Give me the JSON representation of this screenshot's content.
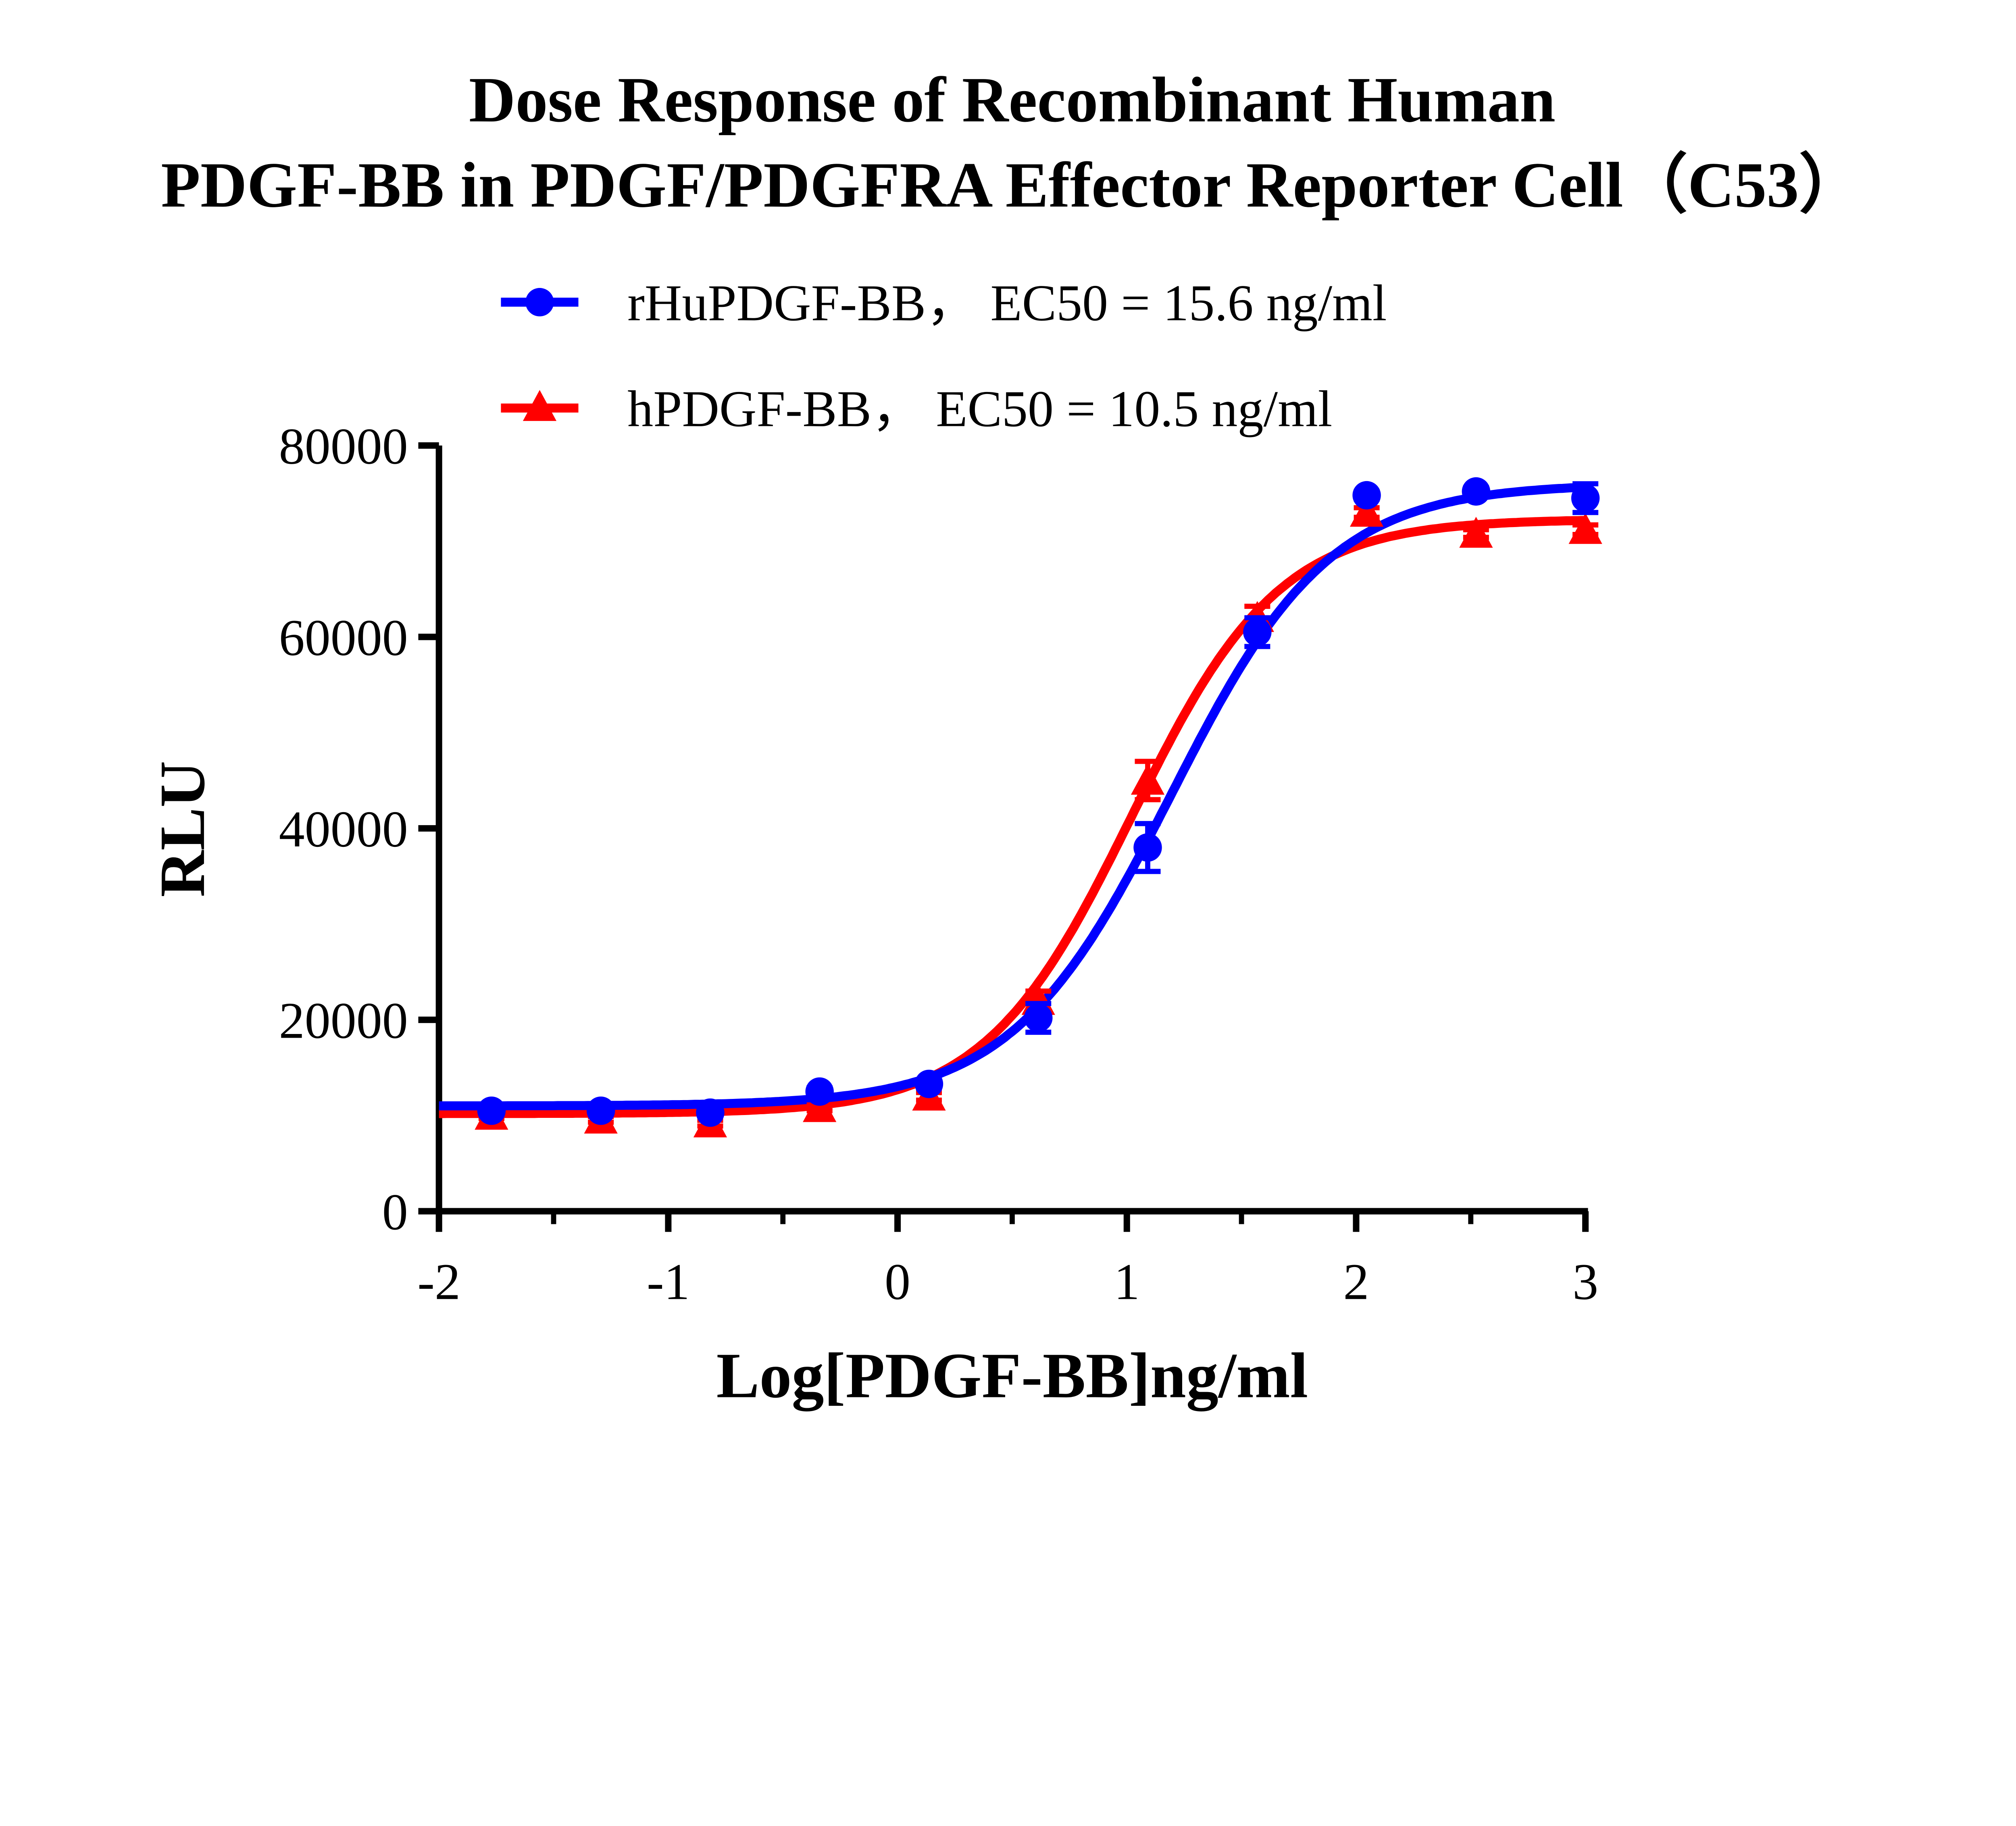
{
  "chart_data": {
    "type": "scatter",
    "title_lines": [
      "Dose Response of Recombinant Human",
      "PDGF-BB in PDGF/PDGFRA Effector Reporter Cell（C53）"
    ],
    "xlabel": "Log[PDGF-BB]ng/ml",
    "ylabel": "RLU",
    "xlim": [
      -2,
      3
    ],
    "ylim": [
      0,
      80000
    ],
    "xticks": [
      "-2",
      "-1",
      "0",
      "1",
      "2",
      "3"
    ],
    "yticks": [
      "0",
      "20000",
      "40000",
      "60000",
      "80000"
    ],
    "grid": false,
    "legend_position": "top",
    "series": [
      {
        "name": "rHuPDGF-BB， EC50 = 15.6 ng/ml",
        "color": "#0000ff",
        "marker": "circle",
        "x": [
          -1.771,
          -1.294,
          -0.817,
          -0.34,
          0.137,
          0.614,
          1.091,
          1.569,
          2.046,
          2.523,
          3.0
        ],
        "y": [
          10500,
          10500,
          10300,
          12500,
          13300,
          20200,
          38000,
          60500,
          74800,
          75200,
          74500
        ],
        "error": [
          300,
          300,
          300,
          400,
          400,
          1500,
          2500,
          1500,
          400,
          400,
          1500
        ],
        "fit": {
          "bottom": 11000,
          "top": 76000,
          "logEC50": 1.193,
          "hill": 1.25
        }
      },
      {
        "name": "hPDGF-BB， EC50 = 10.5 ng/ml",
        "color": "#ff0000",
        "marker": "triangle",
        "x": [
          -1.771,
          -1.294,
          -0.817,
          -0.34,
          0.137,
          0.614,
          1.091,
          1.569,
          2.046,
          2.523,
          3.0
        ],
        "y": [
          10000,
          9600,
          9200,
          10800,
          12000,
          22000,
          45000,
          62000,
          73000,
          70800,
          71200
        ],
        "error": [
          300,
          300,
          300,
          300,
          400,
          1000,
          2000,
          1200,
          500,
          400,
          500
        ],
        "fit": {
          "bottom": 10200,
          "top": 72300,
          "logEC50": 1.021,
          "hill": 1.35
        }
      }
    ]
  }
}
